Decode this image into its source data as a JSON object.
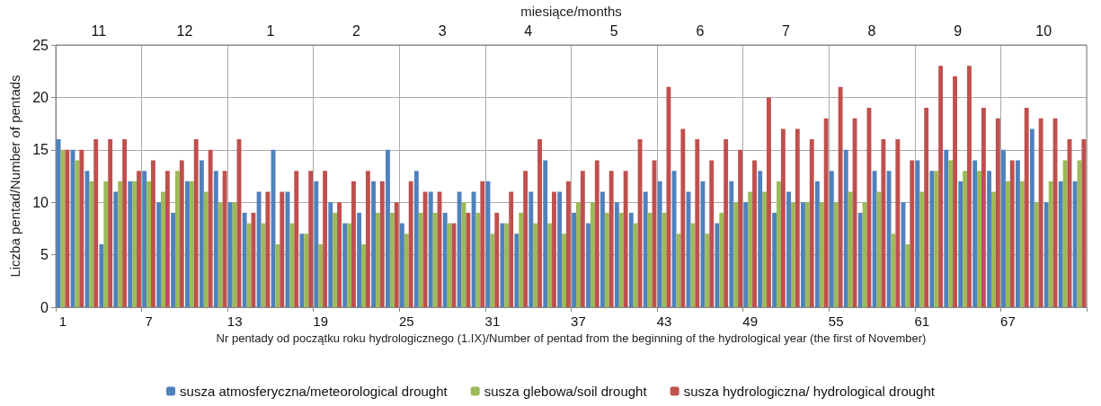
{
  "chart_data": {
    "type": "bar",
    "xlabel": "Nr pentady od początku roku hydrologicznego (1.IX)/Number of pentad from the beginning of the hydrological year (the first of November)",
    "ylabel": "Liczba pentad/Number of pentads",
    "x2label": "miesiące/months",
    "categories": [
      "1",
      null,
      null,
      null,
      null,
      null,
      "7",
      null,
      null,
      null,
      null,
      null,
      "13",
      null,
      null,
      null,
      null,
      null,
      "19",
      null,
      null,
      null,
      null,
      null,
      "25",
      null,
      null,
      null,
      null,
      null,
      "31",
      null,
      null,
      null,
      null,
      null,
      "37",
      null,
      null,
      null,
      null,
      null,
      "43",
      null,
      null,
      null,
      null,
      null,
      "49",
      null,
      null,
      null,
      null,
      null,
      "55",
      null,
      null,
      null,
      null,
      null,
      "61",
      null,
      null,
      null,
      null,
      null,
      "67",
      null,
      null,
      null,
      null,
      null
    ],
    "series": [
      {
        "name": "susza atmosferyczna/meteorological drought",
        "color": "#4f81bd",
        "values": [
          16,
          15,
          13,
          6,
          11,
          12,
          13,
          10,
          9,
          12,
          14,
          13,
          10,
          9,
          11,
          15,
          11,
          7,
          12,
          10,
          8,
          9,
          12,
          15,
          8,
          13,
          11,
          9,
          11,
          11,
          12,
          8,
          7,
          11,
          14,
          11,
          9,
          8,
          11,
          10,
          9,
          11,
          12,
          13,
          11,
          12,
          8,
          12,
          10,
          13,
          9,
          11,
          10,
          12,
          13,
          15,
          9,
          13,
          13,
          10,
          14,
          13,
          15,
          12,
          14,
          13,
          15,
          14,
          17,
          10,
          12,
          12
        ]
      },
      {
        "name": "susza glebowa/soil drought",
        "color": "#9bbb59",
        "values": [
          15,
          14,
          12,
          12,
          12,
          12,
          12,
          11,
          13,
          12,
          11,
          10,
          10,
          8,
          8,
          6,
          8,
          7,
          6,
          9,
          8,
          6,
          9,
          9,
          7,
          9,
          9,
          8,
          10,
          9,
          7,
          8,
          9,
          8,
          8,
          7,
          10,
          10,
          9,
          9,
          8,
          9,
          9,
          7,
          8,
          7,
          9,
          10,
          11,
          11,
          12,
          10,
          10,
          10,
          10,
          11,
          10,
          11,
          7,
          6,
          11,
          13,
          14,
          13,
          13,
          11,
          12,
          12,
          10,
          12,
          14,
          14
        ]
      },
      {
        "name": "susza hydrologiczna/ hydrological drought",
        "color": "#c0504d",
        "values": [
          15,
          15,
          16,
          16,
          16,
          13,
          14,
          13,
          14,
          16,
          15,
          13,
          16,
          9,
          11,
          11,
          13,
          13,
          13,
          10,
          12,
          13,
          12,
          10,
          12,
          11,
          11,
          8,
          9,
          12,
          9,
          11,
          13,
          16,
          11,
          12,
          13,
          14,
          13,
          13,
          16,
          14,
          21,
          17,
          16,
          14,
          16,
          15,
          14,
          20,
          17,
          17,
          16,
          18,
          21,
          18,
          19,
          16,
          16,
          14,
          19,
          23,
          22,
          23,
          19,
          18,
          14,
          19,
          18,
          18,
          16,
          16
        ]
      }
    ],
    "ylim": [
      0,
      25
    ],
    "yticks": [
      0,
      5,
      10,
      15,
      20,
      25
    ],
    "annotations": [
      "11",
      "12",
      "1",
      "2",
      "3",
      "4",
      "5",
      "6",
      "7",
      "8",
      "9",
      "10"
    ],
    "grid": true,
    "legend": "bottom"
  }
}
